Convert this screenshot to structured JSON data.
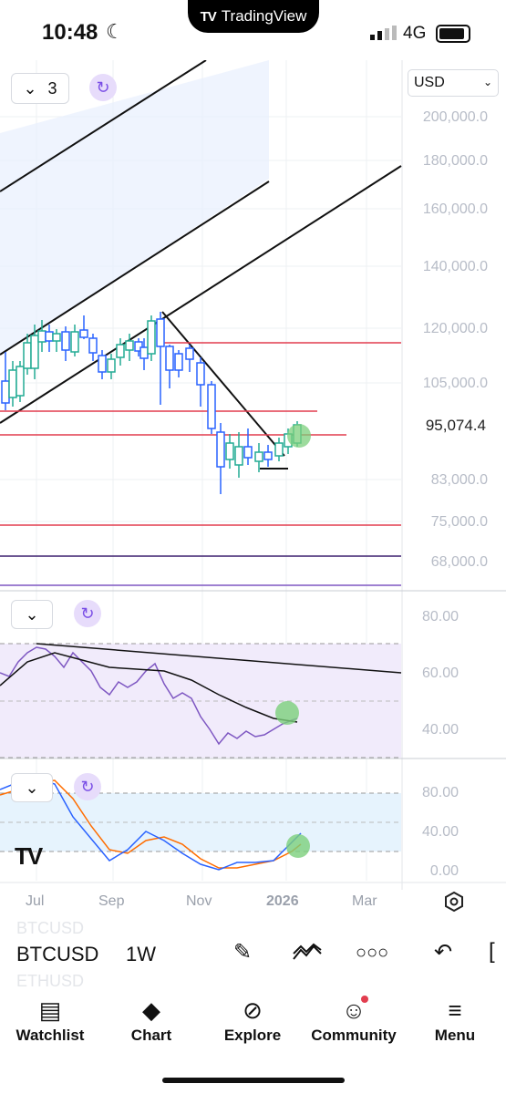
{
  "status_bar": {
    "time": "10:48",
    "brand": "TradingView",
    "network": "4G"
  },
  "chart": {
    "interval_count": "3",
    "currency": "USD",
    "price_ticks": [
      "200,000.0",
      "180,000.0",
      "160,000.0",
      "140,000.0",
      "120,000.0",
      "105,000.0",
      "83,000.0",
      "75,000.0",
      "68,000.0"
    ],
    "current_price": "95,074.4",
    "rsi_ticks": [
      "80.00",
      "60.00",
      "40.00"
    ],
    "stoch_ticks": [
      "80.00",
      "40.00",
      "0.00"
    ],
    "time_ticks": [
      "Jul",
      "Sep",
      "Nov",
      "2026",
      "Mar"
    ]
  },
  "symbol_bar": {
    "symbol": "BTCUSD",
    "prev_symbol": "BTCUSD",
    "next_symbol": "ETHUSD",
    "interval": "1W"
  },
  "tabs": [
    {
      "label": "Watchlist",
      "icon": "watchlist-icon"
    },
    {
      "label": "Chart",
      "icon": "chart-icon"
    },
    {
      "label": "Explore",
      "icon": "compass-icon"
    },
    {
      "label": "Community",
      "icon": "community-icon"
    },
    {
      "label": "Menu",
      "icon": "menu-icon"
    }
  ],
  "colors": {
    "bull": "#22ab94",
    "bear": "#2962ff",
    "level_line": "#e23d4f",
    "rsi": "#7e57c2",
    "stoch_k": "#2962ff",
    "stoch_d": "#ff6d00",
    "accent": "#7a4ee6"
  }
}
